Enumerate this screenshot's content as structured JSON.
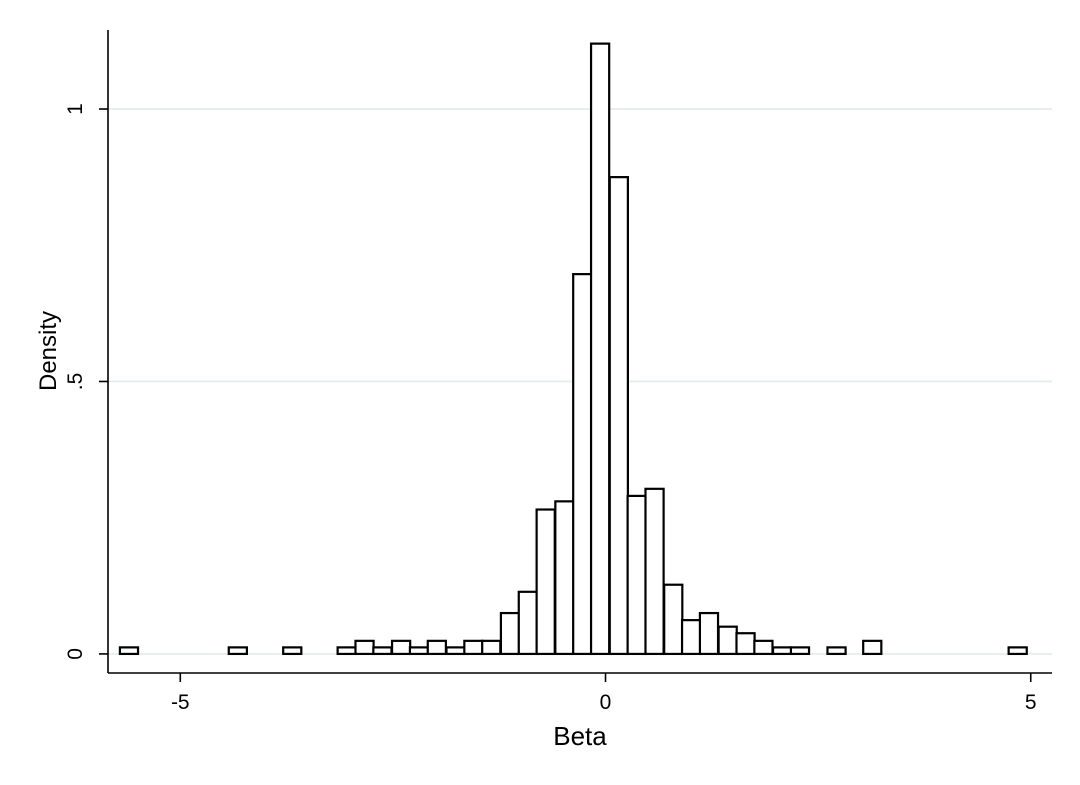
{
  "chart_data": {
    "type": "bar",
    "xlabel": "Beta",
    "ylabel": "Density",
    "xlim": [
      -5.85,
      5.25
    ],
    "ylim": [
      -0.035,
      1.145
    ],
    "grid": true,
    "x_ticks": [
      {
        "value": -5,
        "label": "-5"
      },
      {
        "value": 0,
        "label": "0"
      },
      {
        "value": 5,
        "label": "5"
      }
    ],
    "y_ticks": [
      {
        "value": 0,
        "label": "0"
      },
      {
        "value": 0.5,
        "label": ".5"
      },
      {
        "value": 1,
        "label": "1"
      }
    ],
    "bin_width": 0.2131,
    "bins": [
      {
        "x_start": -5.71,
        "density": 0.012
      },
      {
        "x_start": -4.43,
        "density": 0.012
      },
      {
        "x_start": -3.79,
        "density": 0.012
      },
      {
        "x_start": -3.15,
        "density": 0.012
      },
      {
        "x_start": -2.94,
        "density": 0.024
      },
      {
        "x_start": -2.73,
        "density": 0.012
      },
      {
        "x_start": -2.51,
        "density": 0.024
      },
      {
        "x_start": -2.3,
        "density": 0.012
      },
      {
        "x_start": -2.09,
        "density": 0.024
      },
      {
        "x_start": -1.87,
        "density": 0.012
      },
      {
        "x_start": -1.66,
        "density": 0.024
      },
      {
        "x_start": -1.45,
        "density": 0.024
      },
      {
        "x_start": -1.23,
        "density": 0.075
      },
      {
        "x_start": -1.02,
        "density": 0.114
      },
      {
        "x_start": -0.81,
        "density": 0.265
      },
      {
        "x_start": -0.59,
        "density": 0.28
      },
      {
        "x_start": -0.38,
        "density": 0.697
      },
      {
        "x_start": -0.17,
        "density": 1.12
      },
      {
        "x_start": 0.05,
        "density": 0.875
      },
      {
        "x_start": 0.26,
        "density": 0.29
      },
      {
        "x_start": 0.47,
        "density": 0.303
      },
      {
        "x_start": 0.69,
        "density": 0.127
      },
      {
        "x_start": 0.9,
        "density": 0.062
      },
      {
        "x_start": 1.11,
        "density": 0.075
      },
      {
        "x_start": 1.33,
        "density": 0.05
      },
      {
        "x_start": 1.54,
        "density": 0.038
      },
      {
        "x_start": 1.75,
        "density": 0.024
      },
      {
        "x_start": 1.97,
        "density": 0.012
      },
      {
        "x_start": 2.18,
        "density": 0.012
      },
      {
        "x_start": 2.61,
        "density": 0.012
      },
      {
        "x_start": 3.03,
        "density": 0.024
      },
      {
        "x_start": 4.74,
        "density": 0.012
      }
    ]
  }
}
